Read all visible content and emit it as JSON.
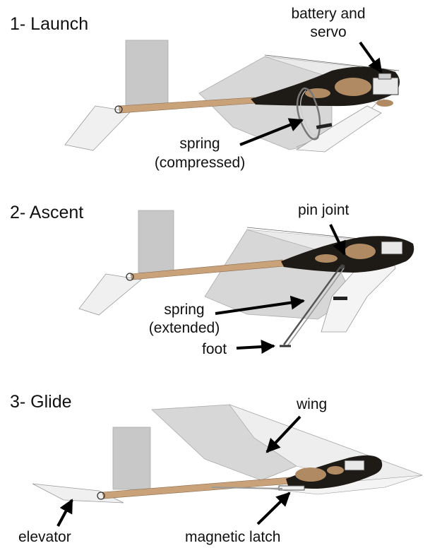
{
  "panels": [
    {
      "title": "1- Launch"
    },
    {
      "title": "2- Ascent"
    },
    {
      "title": "3- Glide"
    }
  ],
  "labels": {
    "battery_line1": "battery and",
    "battery_line2": "servo",
    "spring_compressed_line1": "spring",
    "spring_compressed_line2": "(compressed)",
    "pin_joint": "pin joint",
    "spring_extended_line1": "spring",
    "spring_extended_line2": "(extended)",
    "foot": "foot",
    "wing": "wing",
    "elevator": "elevator",
    "magnetic_latch": "magnetic latch"
  },
  "colors": {
    "boom": "#c9a27a",
    "fuselage": "#1e1a16",
    "fuselage_inner": "#b08a62",
    "wing": "#d9d9d9",
    "tail": "#c8c8c8",
    "arrow": "#000000"
  }
}
